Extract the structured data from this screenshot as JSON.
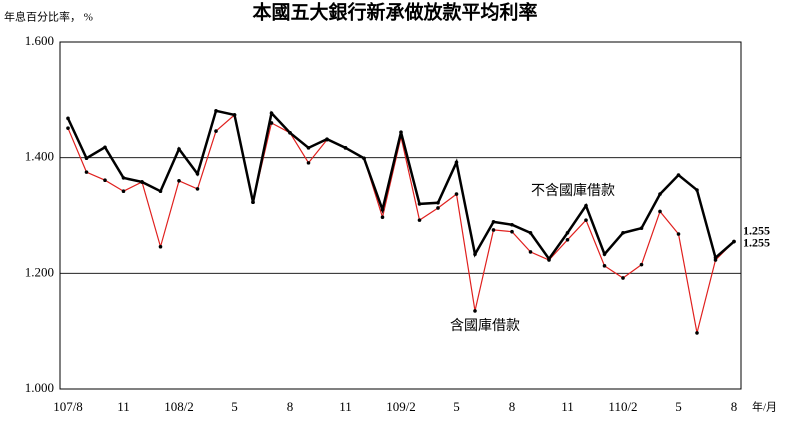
{
  "chart_data": {
    "type": "line",
    "title": "本國五大銀行新承做放款平均利率",
    "y_label": "年息百分比率， %",
    "x_label": "年/月",
    "categories": [
      "107/8",
      null,
      null,
      "11",
      null,
      null,
      "108/2",
      null,
      null,
      "5",
      null,
      null,
      "8",
      null,
      null,
      "11",
      null,
      null,
      "109/2",
      null,
      null,
      "5",
      null,
      null,
      "8",
      null,
      null,
      "11",
      null,
      null,
      "110/2",
      null,
      null,
      "5",
      null,
      null,
      "8"
    ],
    "ylim": [
      1.0,
      1.6
    ],
    "yticks": [
      {
        "value": 1.0,
        "label": "1.000"
      },
      {
        "value": 1.2,
        "label": "1.200"
      },
      {
        "value": 1.4,
        "label": "1.400"
      },
      {
        "value": 1.6,
        "label": "1.600"
      }
    ],
    "grid": true,
    "series": [
      {
        "name": "不含國庫借款",
        "color": "#000000",
        "values": [
          1.468,
          1.399,
          1.418,
          1.365,
          1.358,
          1.342,
          1.415,
          1.372,
          1.481,
          1.474,
          1.323,
          1.477,
          1.443,
          1.417,
          1.432,
          1.417,
          1.399,
          1.31,
          1.444,
          1.32,
          1.322,
          1.392,
          1.233,
          1.289,
          1.284,
          1.27,
          1.225,
          1.27,
          1.317,
          1.233,
          1.27,
          1.278,
          1.337,
          1.37,
          1.344,
          1.227,
          1.255
        ]
      },
      {
        "name": "含國庫借款",
        "color": "#e0201e",
        "values": [
          1.451,
          1.375,
          1.361,
          1.342,
          1.358,
          1.246,
          1.36,
          1.346,
          1.446,
          1.474,
          1.323,
          1.46,
          1.443,
          1.391,
          1.431,
          1.417,
          1.399,
          1.297,
          1.436,
          1.292,
          1.313,
          1.337,
          1.135,
          1.275,
          1.272,
          1.237,
          1.223,
          1.258,
          1.292,
          1.213,
          1.192,
          1.215,
          1.307,
          1.268,
          1.097,
          1.223,
          1.255
        ]
      }
    ]
  }
}
